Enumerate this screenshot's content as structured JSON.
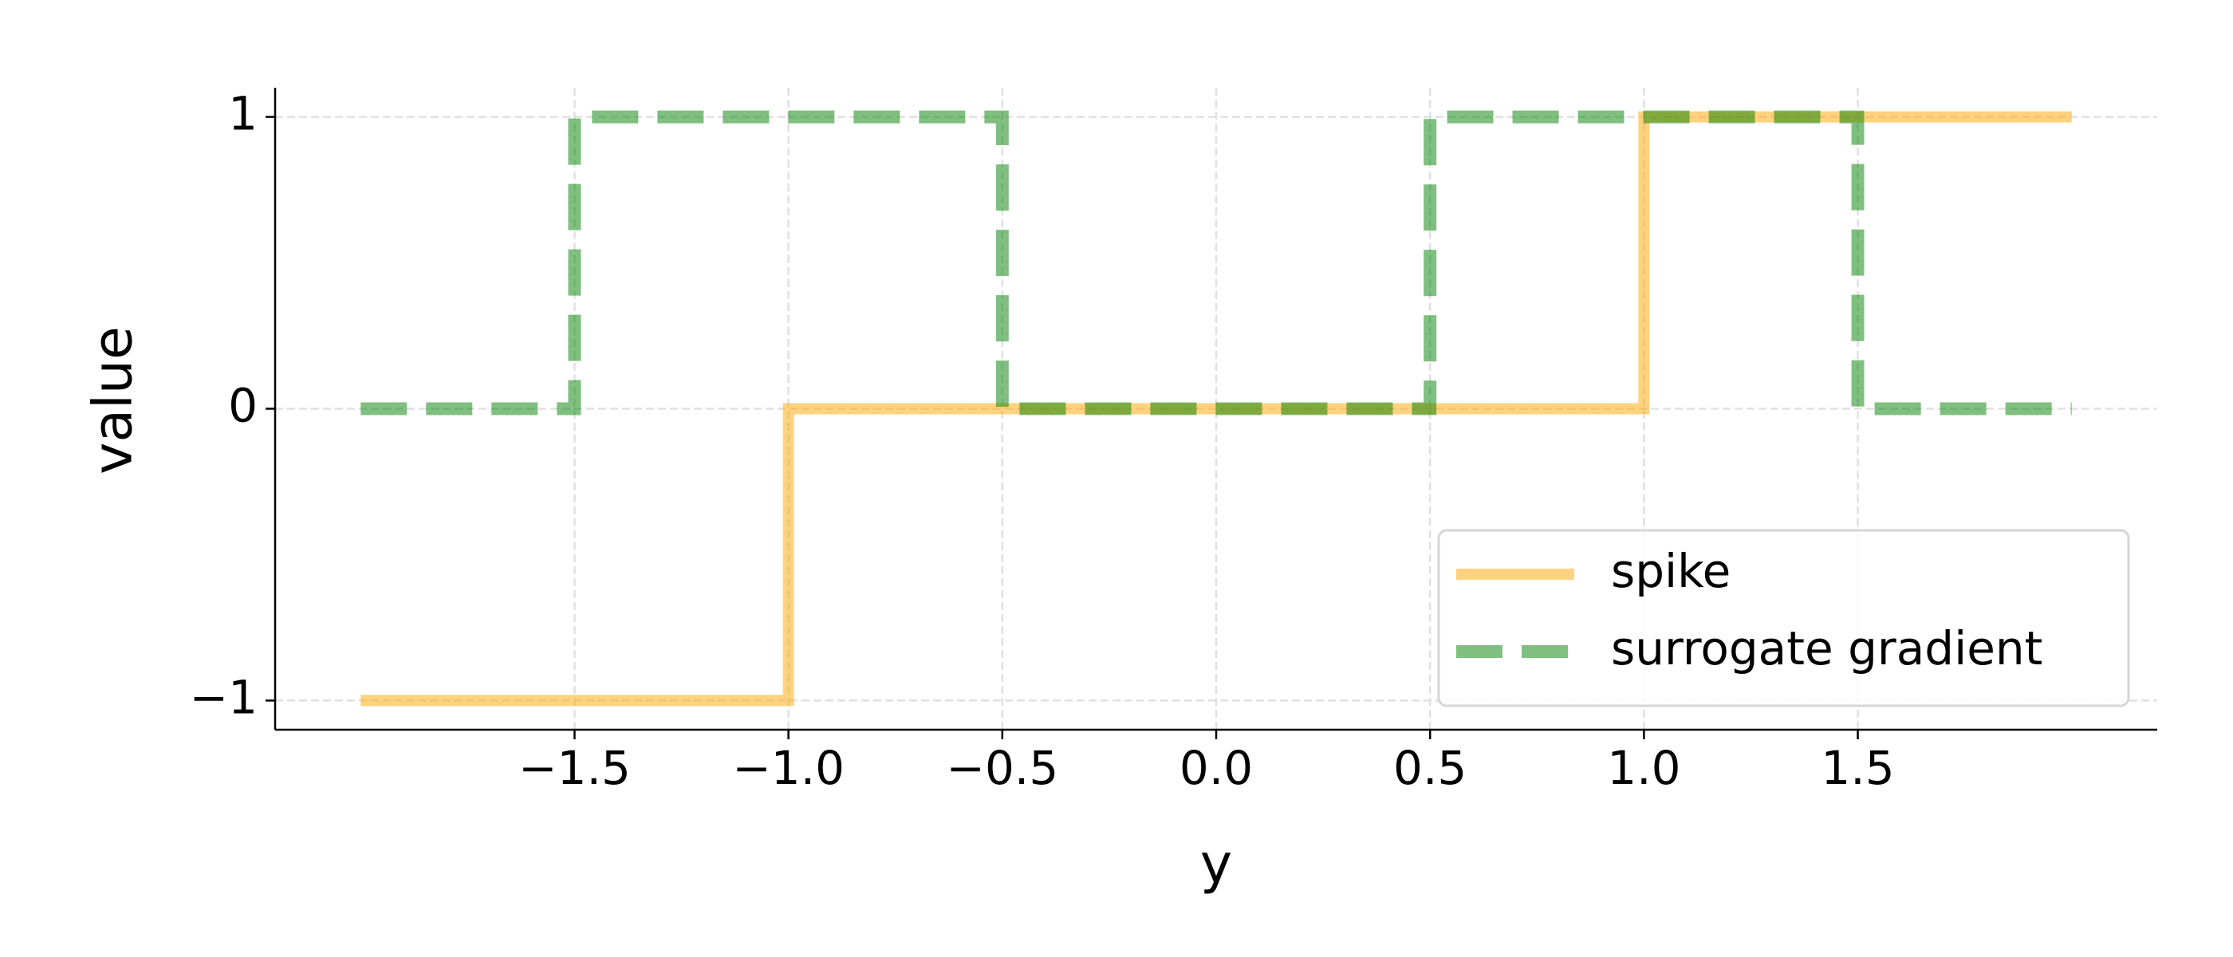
{
  "chart_data": {
    "type": "line",
    "xlabel": "y",
    "ylabel": "value",
    "series": [
      {
        "name": "spike",
        "color": "#ffa500",
        "dash": false,
        "x": [
          -2,
          -1,
          -1,
          1,
          1,
          2
        ],
        "values": [
          -1,
          -1,
          0,
          0,
          1,
          1
        ]
      },
      {
        "name": "surrogate gradient",
        "color": "#008000",
        "dash": true,
        "x": [
          -2,
          -1.5,
          -1.5,
          -0.5,
          -0.5,
          0.5,
          0.5,
          1.5,
          1.5,
          2
        ],
        "values": [
          0,
          0,
          1,
          1,
          0,
          0,
          1,
          1,
          0,
          0
        ]
      }
    ],
    "xlim": [
      -2.2,
      2.2
    ],
    "ylim": [
      -1.1,
      1.1
    ],
    "xticks": [
      {
        "value": -1.5,
        "label": "−1.5"
      },
      {
        "value": -1.0,
        "label": "−1.0"
      },
      {
        "value": -0.5,
        "label": "−0.5"
      },
      {
        "value": 0,
        "label": "0.0"
      },
      {
        "value": 0.5,
        "label": "0.5"
      },
      {
        "value": 1.0,
        "label": "1.0"
      },
      {
        "value": 1.5,
        "label": "1.5"
      }
    ],
    "yticks": [
      {
        "value": -1,
        "label": "−1"
      },
      0,
      1
    ],
    "grid": true,
    "legend": "lower right"
  }
}
